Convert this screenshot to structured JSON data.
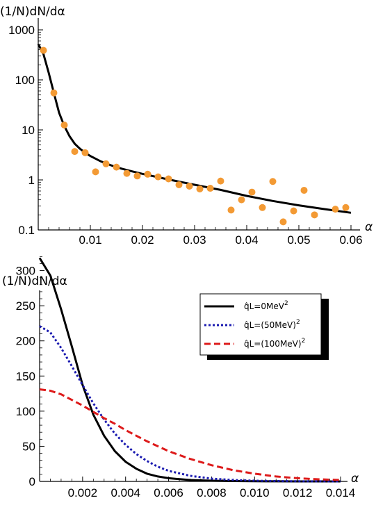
{
  "chart_data": [
    {
      "type": "scatter",
      "ylabel": "(1/N)dN/dα",
      "xlabel": "α",
      "yscale": "log",
      "xlim": [
        0,
        0.06
      ],
      "ylim": [
        0.1,
        1000
      ],
      "x_ticks": [
        "0.01",
        "0.02",
        "0.03",
        "0.04",
        "0.05",
        "0.06"
      ],
      "y_ticks": [
        "0.1",
        "1",
        "10",
        "100",
        "1000"
      ],
      "colors": {
        "points": "#F39A34",
        "curve": "#000000"
      },
      "series": [
        {
          "kind": "points",
          "x": [
            0.001,
            0.003,
            0.005,
            0.007,
            0.009,
            0.011,
            0.013,
            0.015,
            0.017,
            0.019,
            0.021,
            0.023,
            0.025,
            0.027,
            0.029,
            0.031,
            0.033,
            0.035,
            0.037,
            0.039,
            0.041,
            0.043,
            0.045,
            0.047,
            0.049,
            0.051,
            0.053,
            0.057,
            0.059
          ],
          "y": [
            390,
            55,
            12.5,
            3.7,
            3.5,
            1.45,
            2.1,
            1.8,
            1.35,
            1.2,
            1.3,
            1.15,
            1.05,
            0.8,
            0.75,
            0.66,
            0.68,
            0.95,
            0.25,
            0.4,
            0.57,
            0.28,
            0.93,
            0.145,
            0.24,
            0.62,
            0.2,
            0.26,
            0.28
          ]
        },
        {
          "kind": "line",
          "x": [
            0,
            0.001,
            0.002,
            0.003,
            0.004,
            0.005,
            0.006,
            0.007,
            0.008,
            0.009,
            0.01,
            0.012,
            0.014,
            0.016,
            0.018,
            0.02,
            0.025,
            0.03,
            0.035,
            0.04,
            0.045,
            0.05,
            0.055,
            0.06
          ],
          "y": [
            520,
            330,
            140,
            55,
            22,
            12,
            7.5,
            5.3,
            4.2,
            3.5,
            3.0,
            2.35,
            1.95,
            1.68,
            1.48,
            1.32,
            1.02,
            0.8,
            0.63,
            0.48,
            0.38,
            0.31,
            0.26,
            0.22
          ]
        }
      ]
    },
    {
      "type": "line",
      "ylabel": "(1/N)dN/dα",
      "xlabel": "α",
      "xlim": [
        0,
        0.014
      ],
      "ylim": [
        0,
        330
      ],
      "x_ticks": [
        "0.002",
        "0.004",
        "0.006",
        "0.008",
        "0.010",
        "0.012",
        "0.014"
      ],
      "y_ticks": [
        "0",
        "50",
        "100",
        "150",
        "200",
        "250",
        "300"
      ],
      "legend_position": "top-right",
      "series": [
        {
          "name_prefix": "q̂L=0MeV",
          "name_sup": "2",
          "color": "#000000",
          "dash": "solid",
          "x": [
            0,
            0.0005,
            0.001,
            0.0015,
            0.002,
            0.0025,
            0.003,
            0.0035,
            0.004,
            0.0045,
            0.005,
            0.0055,
            0.006,
            0.007,
            0.008,
            0.009,
            0.01,
            0.011,
            0.012,
            0.013,
            0.014
          ],
          "y": [
            318,
            293,
            245,
            192,
            137,
            95,
            65,
            43,
            28,
            18,
            11,
            7,
            4.5,
            2,
            1,
            0.5,
            0.2,
            0.1,
            0,
            0,
            0
          ]
        },
        {
          "name_prefix": "q̂L=(50MeV)",
          "name_sup": "2",
          "color": "#1A1AB0",
          "dash": "dotted",
          "x": [
            0,
            0.0005,
            0.001,
            0.0015,
            0.002,
            0.0025,
            0.003,
            0.0035,
            0.004,
            0.0045,
            0.005,
            0.0055,
            0.006,
            0.007,
            0.008,
            0.009,
            0.01,
            0.011,
            0.012,
            0.013,
            0.014
          ],
          "y": [
            221,
            212,
            190,
            164,
            137,
            111,
            88,
            68,
            52,
            39,
            29,
            21,
            15,
            8,
            4,
            2,
            1,
            0.5,
            0.2,
            0.1,
            0
          ]
        },
        {
          "name_prefix": "q̂L=(100MeV)",
          "name_sup": "2",
          "color": "#DD1A1A",
          "dash": "dashed",
          "x": [
            0,
            0.0005,
            0.001,
            0.0015,
            0.002,
            0.0025,
            0.003,
            0.0035,
            0.004,
            0.0045,
            0.005,
            0.0055,
            0.006,
            0.007,
            0.008,
            0.009,
            0.01,
            0.011,
            0.012,
            0.013,
            0.014
          ],
          "y": [
            131,
            129,
            124,
            116,
            108,
            99,
            90,
            82,
            73,
            65,
            57,
            50,
            43,
            32,
            23,
            16,
            11,
            7,
            4.5,
            3,
            2
          ]
        }
      ]
    }
  ]
}
